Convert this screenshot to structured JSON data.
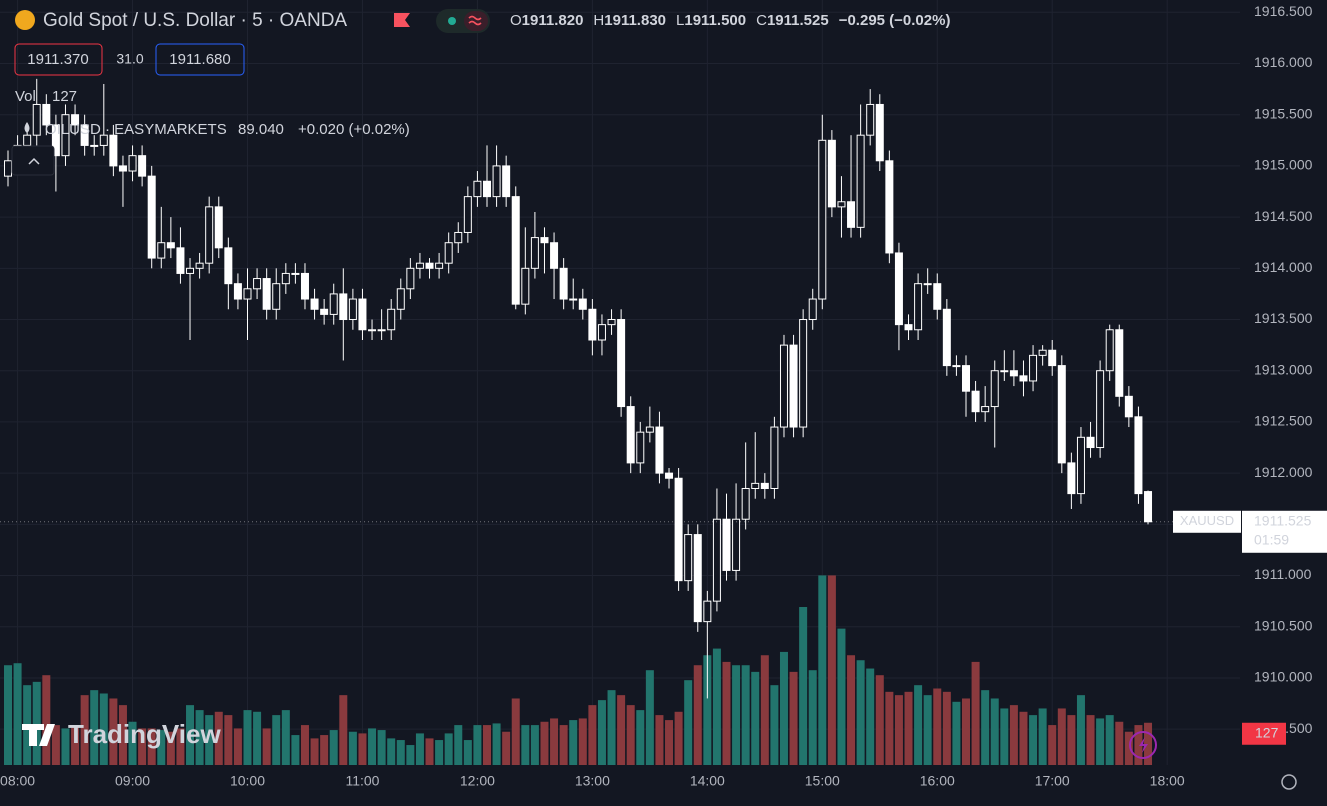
{
  "chart_data": {
    "type": "candlestick",
    "title": "Gold Spot / U.S. Dollar · 5 · OANDA",
    "open": [
      1914.9,
      1915.05,
      1915.2,
      1915.3,
      1915.6,
      1915.4,
      1915.1,
      1915.5,
      1915.4,
      1915.2,
      1915.2,
      1915.3,
      1915.0,
      1914.95,
      1915.1,
      1914.9,
      1914.1,
      1914.25,
      1914.2,
      1913.95,
      1914.0,
      1914.05,
      1914.6,
      1914.2,
      1913.85,
      1913.7,
      1913.8,
      1913.9,
      1913.6,
      1913.85,
      1913.95,
      1913.95,
      1913.7,
      1913.6,
      1913.55,
      1913.75,
      1913.5,
      1913.7,
      1913.4,
      1913.4,
      1913.4,
      1913.6,
      1913.8,
      1914.0,
      1914.05,
      1914.0,
      1914.05,
      1914.25,
      1914.35,
      1914.7,
      1914.85,
      1914.7,
      1915.0,
      1914.7,
      1913.65,
      1914.0,
      1914.3,
      1914.25,
      1914.0,
      1913.7,
      1913.7,
      1913.6,
      1913.3,
      1913.45,
      1913.5,
      1912.65,
      1912.1,
      1912.4,
      1912.45,
      1912.0,
      1911.95,
      1910.95,
      1911.4,
      1910.55,
      1910.75,
      1911.55,
      1911.05,
      1911.55,
      1911.85,
      1911.9,
      1911.85,
      1912.45,
      1913.25,
      1912.45,
      1913.5,
      1913.7,
      1915.25,
      1914.6,
      1914.65,
      1914.4,
      1915.3,
      1915.6,
      1915.05,
      1914.15,
      1913.45,
      1913.4,
      1913.85,
      1913.85,
      1913.6,
      1913.05,
      1913.05,
      1912.8,
      1912.6,
      1912.65,
      1913.0,
      1913.0,
      1912.95,
      1912.9,
      1913.15,
      1913.2,
      1913.05,
      1912.1,
      1911.8,
      1912.35,
      1912.25,
      1913.0,
      1913.4,
      1912.75,
      1912.55,
      1911.82
    ],
    "high": [
      1915.15,
      1915.3,
      1915.4,
      1915.85,
      1915.7,
      1915.5,
      1915.6,
      1915.6,
      1915.5,
      1915.3,
      1915.8,
      1915.4,
      1915.1,
      1915.2,
      1915.2,
      1915.0,
      1914.6,
      1914.5,
      1914.4,
      1914.1,
      1914.15,
      1914.7,
      1914.7,
      1914.3,
      1913.95,
      1914.0,
      1914.0,
      1914.0,
      1914.0,
      1914.05,
      1914.05,
      1914.05,
      1913.8,
      1913.7,
      1913.85,
      1914.0,
      1913.8,
      1913.8,
      1913.5,
      1913.6,
      1913.7,
      1913.9,
      1914.1,
      1914.15,
      1914.1,
      1914.15,
      1914.35,
      1914.45,
      1914.8,
      1914.95,
      1915.2,
      1915.2,
      1915.1,
      1914.8,
      1914.4,
      1914.55,
      1914.4,
      1914.35,
      1914.1,
      1913.9,
      1913.8,
      1913.7,
      1913.55,
      1913.6,
      1913.6,
      1912.75,
      1912.5,
      1912.65,
      1912.6,
      1912.05,
      1912.05,
      1911.5,
      1911.5,
      1910.85,
      1911.85,
      1911.8,
      1911.9,
      1912.3,
      1912.4,
      1912.0,
      1912.55,
      1913.35,
      1913.35,
      1913.6,
      1913.8,
      1915.5,
      1915.35,
      1914.9,
      1915.3,
      1915.6,
      1915.75,
      1915.7,
      1915.15,
      1914.25,
      1913.55,
      1913.95,
      1914.0,
      1913.95,
      1913.7,
      1913.15,
      1913.15,
      1912.9,
      1912.85,
      1913.1,
      1913.2,
      1913.2,
      1913.1,
      1913.25,
      1913.25,
      1913.3,
      1913.15,
      1912.2,
      1912.45,
      1912.5,
      1913.1,
      1913.45,
      1913.45,
      1912.85,
      1912.65,
      1911.83
    ],
    "low": [
      1914.8,
      1914.95,
      1915.1,
      1915.2,
      1915.3,
      1914.75,
      1915.0,
      1915.3,
      1915.1,
      1915.1,
      1915.1,
      1914.9,
      1914.6,
      1914.85,
      1914.8,
      1914.0,
      1914.0,
      1914.1,
      1913.85,
      1913.3,
      1913.9,
      1913.95,
      1914.1,
      1913.6,
      1913.6,
      1913.3,
      1913.7,
      1913.5,
      1913.5,
      1913.75,
      1913.85,
      1913.6,
      1913.5,
      1913.45,
      1913.45,
      1913.1,
      1913.4,
      1913.3,
      1913.3,
      1913.3,
      1913.3,
      1913.5,
      1913.7,
      1913.9,
      1913.9,
      1913.9,
      1913.95,
      1914.15,
      1914.25,
      1914.6,
      1914.6,
      1914.6,
      1914.6,
      1913.6,
      1913.55,
      1913.9,
      1913.95,
      1913.7,
      1913.6,
      1913.6,
      1913.5,
      1913.15,
      1913.15,
      1913.35,
      1912.55,
      1912.0,
      1912.0,
      1912.3,
      1911.9,
      1911.85,
      1910.85,
      1910.85,
      1910.45,
      1909.8,
      1910.65,
      1910.95,
      1910.95,
      1911.45,
      1911.75,
      1911.75,
      1911.75,
      1912.35,
      1912.35,
      1912.35,
      1913.4,
      1913.6,
      1914.5,
      1914.3,
      1914.3,
      1914.3,
      1915.2,
      1914.95,
      1914.05,
      1913.2,
      1913.3,
      1913.3,
      1913.75,
      1913.5,
      1912.95,
      1912.95,
      1912.55,
      1912.5,
      1912.5,
      1912.25,
      1912.9,
      1912.85,
      1912.75,
      1912.8,
      1913.05,
      1912.95,
      1912.0,
      1911.65,
      1911.7,
      1912.15,
      1912.15,
      1912.9,
      1912.65,
      1912.45,
      1911.7,
      1911.5
    ],
    "close": [
      1915.05,
      1915.2,
      1915.3,
      1915.6,
      1915.4,
      1915.1,
      1915.5,
      1915.4,
      1915.2,
      1915.2,
      1915.3,
      1915.0,
      1914.95,
      1915.1,
      1914.9,
      1914.1,
      1914.25,
      1914.2,
      1913.95,
      1914.0,
      1914.05,
      1914.6,
      1914.2,
      1913.85,
      1913.7,
      1913.8,
      1913.9,
      1913.6,
      1913.85,
      1913.95,
      1913.95,
      1913.7,
      1913.6,
      1913.55,
      1913.75,
      1913.5,
      1913.7,
      1913.4,
      1913.4,
      1913.4,
      1913.6,
      1913.8,
      1914.0,
      1914.05,
      1914.0,
      1914.05,
      1914.25,
      1914.35,
      1914.7,
      1914.85,
      1914.7,
      1915.0,
      1914.7,
      1913.65,
      1914.0,
      1914.3,
      1914.25,
      1914.0,
      1913.7,
      1913.7,
      1913.6,
      1913.3,
      1913.45,
      1913.5,
      1912.65,
      1912.1,
      1912.4,
      1912.45,
      1912.0,
      1911.95,
      1910.95,
      1911.4,
      1910.55,
      1910.75,
      1911.55,
      1911.05,
      1911.55,
      1911.85,
      1911.9,
      1911.85,
      1912.45,
      1913.25,
      1912.45,
      1913.5,
      1913.7,
      1915.25,
      1914.6,
      1914.65,
      1914.4,
      1915.3,
      1915.6,
      1915.05,
      1914.15,
      1913.45,
      1913.4,
      1913.85,
      1913.85,
      1913.6,
      1913.05,
      1913.05,
      1912.8,
      1912.6,
      1912.65,
      1913.0,
      1913.0,
      1912.95,
      1912.9,
      1913.15,
      1913.2,
      1913.05,
      1912.1,
      1911.8,
      1912.35,
      1912.25,
      1913.0,
      1913.4,
      1912.75,
      1912.55,
      1911.8,
      1911.525
    ],
    "volume": [
      300,
      306,
      240,
      250,
      270,
      120,
      110,
      120,
      210,
      225,
      215,
      200,
      180,
      130,
      110,
      110,
      105,
      100,
      110,
      180,
      165,
      150,
      160,
      150,
      110,
      165,
      160,
      110,
      150,
      165,
      90,
      120,
      80,
      90,
      105,
      210,
      100,
      95,
      110,
      105,
      80,
      75,
      60,
      95,
      80,
      75,
      95,
      120,
      75,
      120,
      120,
      125,
      100,
      200,
      120,
      120,
      130,
      140,
      120,
      135,
      140,
      180,
      195,
      225,
      210,
      180,
      165,
      285,
      150,
      135,
      160,
      255,
      300,
      330,
      350,
      310,
      300,
      300,
      280,
      330,
      240,
      340,
      280,
      475,
      285,
      570,
      570,
      410,
      330,
      315,
      290,
      270,
      220,
      210,
      220,
      240,
      210,
      230,
      220,
      190,
      200,
      310,
      225,
      200,
      170,
      180,
      160,
      150,
      170,
      120,
      170,
      150,
      210,
      150,
      140,
      150,
      130,
      100,
      120,
      127
    ],
    "candle_color": "#ffffff",
    "volume_up_color": "#22756d",
    "volume_down_color": "#8a3a3e",
    "ylim": [
      1909.15,
      1916.62
    ],
    "volume_ylim": [
      0,
      2300
    ],
    "yticks": [
      {
        "value": 1909.5,
        "label": "1909.500"
      },
      {
        "value": 1910,
        "label": "1910.000"
      },
      {
        "value": 1910.5,
        "label": "1910.500"
      },
      {
        "value": 1911,
        "label": "1911.000"
      },
      {
        "value": 1911.5,
        "label": "1911.500"
      },
      {
        "value": 1912,
        "label": "1912.000"
      },
      {
        "value": 1912.5,
        "label": "1912.500"
      },
      {
        "value": 1913,
        "label": "1913.000"
      },
      {
        "value": 1913.5,
        "label": "1913.500"
      },
      {
        "value": 1914,
        "label": "1914.000"
      },
      {
        "value": 1914.5,
        "label": "1914.500"
      },
      {
        "value": 1915,
        "label": "1915.000"
      },
      {
        "value": 1915.5,
        "label": "1915.500"
      },
      {
        "value": 1916,
        "label": "1916.000"
      },
      {
        "value": 1916.5,
        "label": "1916.500"
      }
    ],
    "xticks": [
      {
        "value": 1,
        "label": "08:00"
      },
      {
        "value": 13,
        "label": "09:00"
      },
      {
        "value": 25,
        "label": "10:00"
      },
      {
        "value": 37,
        "label": "11:00"
      },
      {
        "value": 49,
        "label": "12:00"
      },
      {
        "value": 61,
        "label": "13:00"
      },
      {
        "value": 73,
        "label": "14:00"
      },
      {
        "value": 85,
        "label": "15:00"
      },
      {
        "value": 97,
        "label": "16:00"
      },
      {
        "value": 109,
        "label": "17:00"
      },
      {
        "value": 121,
        "label": "18:00"
      }
    ],
    "grid": true
  },
  "header": {
    "ohlc": [
      {
        "label": "O",
        "value": "1911.820"
      },
      {
        "label": "H",
        "value": "1911.830"
      },
      {
        "label": "L",
        "value": "1911.500"
      },
      {
        "label": "C",
        "value": "1911.525"
      }
    ],
    "change": "−0.295 (−0.02%)",
    "bid": "1911.370",
    "spread": "31.0",
    "ask": "1911.680",
    "volume_label": "Vol",
    "indicator": {
      "name": "OILUSD · EASYMARKETS",
      "price": "89.040",
      "change": "+0.020 (+0.02%)"
    },
    "price_tag_symbol": "XAUUSD",
    "countdown": "01:59",
    "logo": "TradingView"
  }
}
